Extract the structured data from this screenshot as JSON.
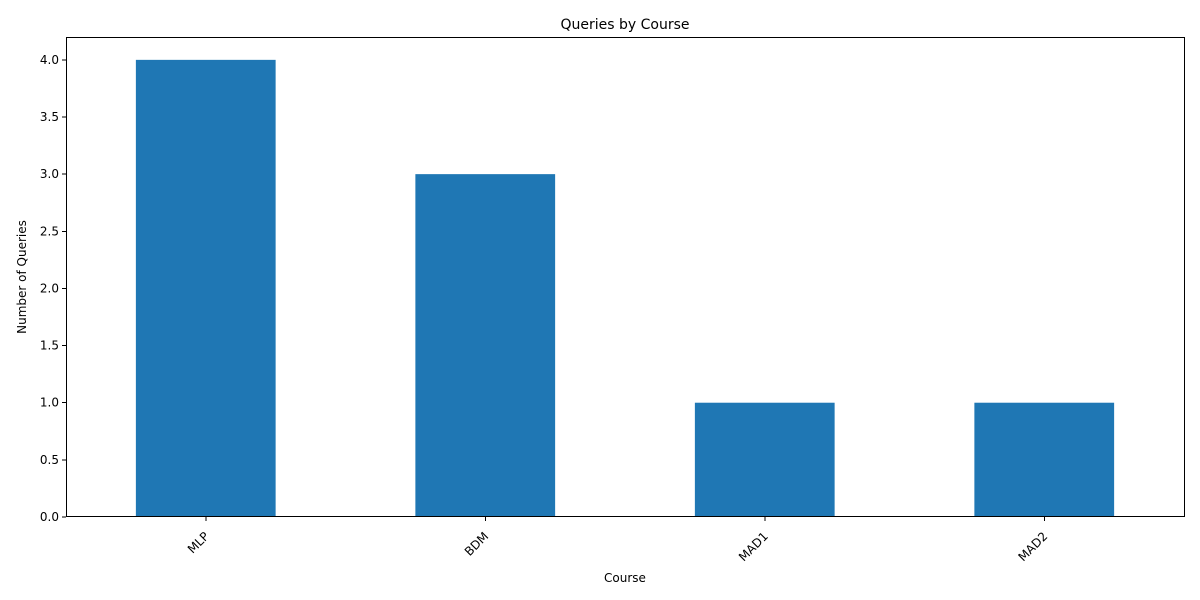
{
  "chart_data": {
    "type": "bar",
    "title": "Queries by Course",
    "xlabel": "Course",
    "ylabel": "Number of Queries",
    "categories": [
      "MLP",
      "BDM",
      "MAD1",
      "MAD2"
    ],
    "values": [
      4,
      3,
      1,
      1
    ],
    "ylim": [
      0,
      4.2
    ],
    "yticks": [
      "0.0",
      "0.5",
      "1.0",
      "1.5",
      "2.0",
      "2.5",
      "3.0",
      "3.5",
      "4.0"
    ],
    "xtick_rotation": 45,
    "bar_color": "#1f77b4",
    "grid": false,
    "legend": false
  }
}
